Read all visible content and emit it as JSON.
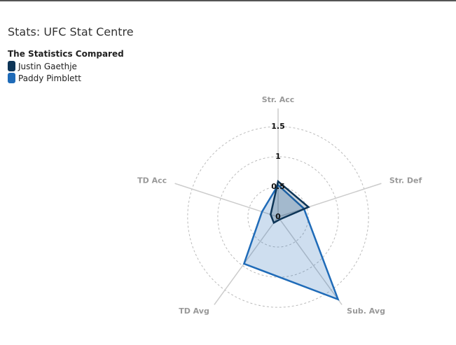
{
  "header": {
    "title": "Stats: UFC Stat Centre"
  },
  "chart_data": {
    "type": "radar",
    "legend_title": "The Statistics Compared",
    "categories": [
      "Str. Acc",
      "Str. Def",
      "Sub. Avg",
      "TD Avg",
      "TD Acc"
    ],
    "series": [
      {
        "name": "Justin Gaethje",
        "color": "#0d3557",
        "values": [
          0.59,
          0.53,
          0.05,
          0.12,
          0.13
        ]
      },
      {
        "name": "Paddy Pimblett",
        "color": "#1f6bb8",
        "values": [
          0.53,
          0.45,
          1.69,
          0.96,
          0.28
        ]
      }
    ],
    "rlim": [
      0,
      1.8
    ],
    "rticks": [
      0,
      0.5,
      1,
      1.5
    ],
    "grid": true
  }
}
